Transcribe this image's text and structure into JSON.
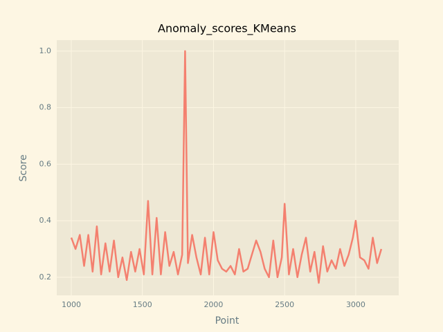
{
  "chart_data": {
    "type": "line",
    "title": "Anomaly_scores_KMeans",
    "xlabel": "Point",
    "ylabel": "Score",
    "x": [
      1000,
      1030,
      1060,
      1090,
      1120,
      1150,
      1180,
      1210,
      1240,
      1270,
      1300,
      1330,
      1360,
      1390,
      1420,
      1450,
      1480,
      1510,
      1540,
      1570,
      1600,
      1630,
      1660,
      1690,
      1720,
      1750,
      1780,
      1800,
      1820,
      1850,
      1880,
      1910,
      1940,
      1970,
      2000,
      2030,
      2060,
      2090,
      2120,
      2150,
      2180,
      2210,
      2240,
      2270,
      2300,
      2330,
      2360,
      2390,
      2420,
      2450,
      2480,
      2500,
      2530,
      2560,
      2590,
      2620,
      2650,
      2680,
      2710,
      2740,
      2770,
      2800,
      2830,
      2860,
      2890,
      2920,
      2950,
      2980,
      3000,
      3030,
      3060,
      3090,
      3120,
      3150,
      3180
    ],
    "series": [
      {
        "name": "Score",
        "color": "#f4806f",
        "values": [
          0.34,
          0.3,
          0.35,
          0.24,
          0.35,
          0.22,
          0.38,
          0.21,
          0.32,
          0.22,
          0.33,
          0.2,
          0.27,
          0.19,
          0.29,
          0.22,
          0.3,
          0.21,
          0.47,
          0.21,
          0.41,
          0.21,
          0.36,
          0.24,
          0.29,
          0.21,
          0.28,
          1.0,
          0.25,
          0.35,
          0.27,
          0.21,
          0.34,
          0.21,
          0.36,
          0.26,
          0.23,
          0.22,
          0.24,
          0.21,
          0.3,
          0.22,
          0.23,
          0.28,
          0.33,
          0.29,
          0.23,
          0.2,
          0.33,
          0.2,
          0.27,
          0.46,
          0.21,
          0.3,
          0.2,
          0.28,
          0.34,
          0.22,
          0.29,
          0.18,
          0.31,
          0.22,
          0.26,
          0.23,
          0.3,
          0.24,
          0.28,
          0.34,
          0.4,
          0.27,
          0.26,
          0.23,
          0.34,
          0.25,
          0.3
        ]
      }
    ],
    "xlim": [
      898,
      3302
    ],
    "xticks": [
      1000,
      1500,
      2000,
      2500,
      3000
    ],
    "ylim": [
      0.136,
      1.039
    ],
    "yticks": [
      0.2,
      0.4,
      0.6,
      0.8,
      {
        "value": 1,
        "label": "1.0"
      }
    ],
    "grid": true
  }
}
